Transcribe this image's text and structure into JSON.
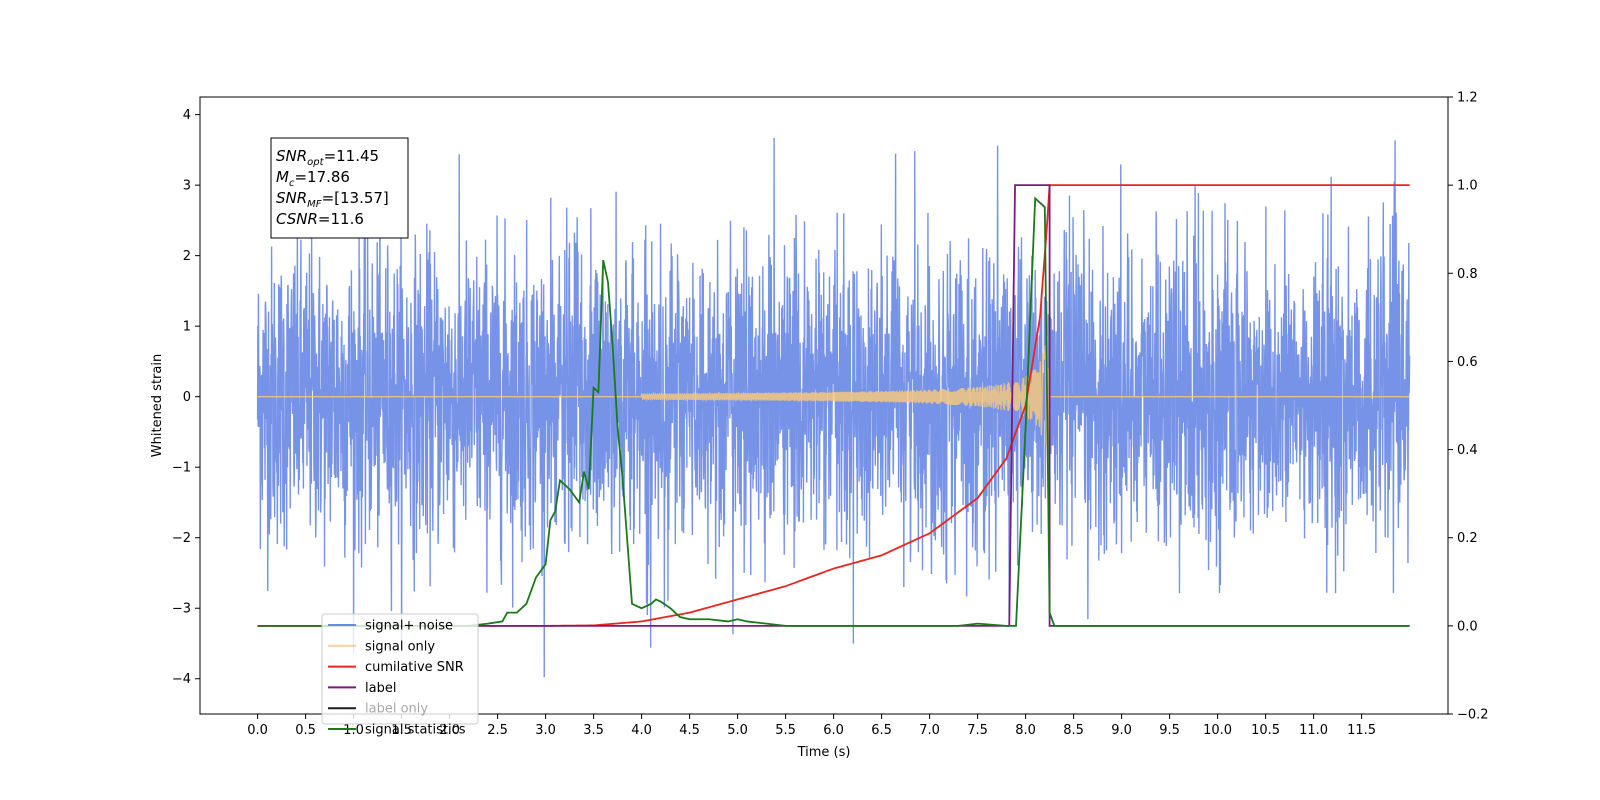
{
  "chart_data": {
    "type": "line",
    "title": "",
    "xlabel": "Time (s)",
    "ylabel": "Whitened strain",
    "y2label": "",
    "xlim": [
      -0.6,
      12.4
    ],
    "ylim": [
      -4.5,
      4.25
    ],
    "y2lim": [
      -0.2,
      1.2
    ],
    "x_ticks": [
      "0.0",
      "0.5",
      "1.0",
      "1.5",
      "2.0",
      "2.5",
      "3.0",
      "3.5",
      "4.0",
      "4.5",
      "5.0",
      "5.5",
      "6.0",
      "6.5",
      "7.0",
      "7.5",
      "8.0",
      "8.5",
      "9.0",
      "9.5",
      "10.0",
      "10.5",
      "11.0",
      "11.5"
    ],
    "y_ticks": [
      "4",
      "3",
      "2",
      "1",
      "0",
      "−1",
      "−2",
      "−3",
      "−4"
    ],
    "y2_ticks": [
      "1.2",
      "1.0",
      "0.8",
      "0.6",
      "0.4",
      "0.2",
      "0.0",
      "−0.2"
    ],
    "grid": false,
    "legend_position": "lower-left",
    "series": [
      {
        "name": "signal+ noise",
        "color": "#6b8ae6",
        "axis": "left",
        "description_values": {
          "time_range": [
            0.0,
            12.0
          ],
          "typical_amplitude": 1.4,
          "peak_max": 3.85,
          "peak_min": -4.1
        }
      },
      {
        "name": "signal only",
        "color": "#f5c77e",
        "axis": "left",
        "description_values": {
          "onset": 4.0,
          "merger": 8.25,
          "peak_amplitude": 1.4
        }
      },
      {
        "name": "cumilative SNR",
        "color": "#e8251f",
        "axis": "right",
        "x": [
          0.0,
          3.0,
          3.5,
          4.0,
          4.5,
          5.0,
          5.5,
          6.0,
          6.5,
          7.0,
          7.5,
          7.8,
          8.0,
          8.15,
          8.22,
          8.25,
          12.0
        ],
        "y": [
          0.0,
          0.0,
          0.001,
          0.01,
          0.03,
          0.06,
          0.09,
          0.13,
          0.16,
          0.21,
          0.29,
          0.38,
          0.5,
          0.7,
          0.9,
          1.0,
          1.0
        ]
      },
      {
        "name": "label",
        "color": "#7b1b7f",
        "axis": "right",
        "x": [
          0.0,
          7.83,
          7.89,
          8.25,
          8.25,
          12.0
        ],
        "y": [
          0.0,
          0.0,
          1.0,
          1.0,
          0.0,
          0.0
        ]
      },
      {
        "name": "label only",
        "color": "#1e1e1e",
        "axis": "right",
        "x": [],
        "y": []
      },
      {
        "name": "signal statistics",
        "color": "#1a7a1a",
        "axis": "right",
        "x": [
          0.0,
          2.2,
          2.4,
          2.55,
          2.6,
          2.7,
          2.8,
          2.9,
          3.0,
          3.05,
          3.1,
          3.15,
          3.25,
          3.35,
          3.4,
          3.45,
          3.5,
          3.55,
          3.6,
          3.65,
          3.7,
          3.75,
          3.8,
          3.9,
          4.0,
          4.1,
          4.15,
          4.2,
          4.3,
          4.4,
          4.5,
          4.7,
          4.9,
          5.0,
          5.1,
          5.3,
          5.5,
          5.6,
          5.8,
          7.2,
          7.3,
          7.5,
          7.8,
          7.9,
          8.0,
          8.1,
          8.2,
          8.25,
          8.3,
          12.0
        ],
        "y": [
          0.0,
          0.0,
          0.005,
          0.01,
          0.03,
          0.03,
          0.05,
          0.11,
          0.14,
          0.24,
          0.26,
          0.33,
          0.31,
          0.28,
          0.35,
          0.31,
          0.54,
          0.53,
          0.83,
          0.78,
          0.63,
          0.45,
          0.34,
          0.05,
          0.04,
          0.05,
          0.06,
          0.055,
          0.04,
          0.02,
          0.015,
          0.015,
          0.01,
          0.015,
          0.01,
          0.005,
          0.0,
          0.0,
          0.0,
          0.0,
          0.0,
          0.005,
          0.0,
          0.0,
          0.45,
          0.97,
          0.95,
          0.03,
          0.0,
          0.0
        ]
      }
    ],
    "annotation": {
      "lines": [
        {
          "var": "SNR",
          "sub": "opt",
          "value": "=11.45"
        },
        {
          "var": "M",
          "sub": "c",
          "value": "=17.86"
        },
        {
          "var": "SNR",
          "sub": "MF",
          "value": "=[13.57]"
        },
        {
          "var": "CSNR",
          "sub": "",
          "value": "=11.6"
        }
      ]
    }
  }
}
